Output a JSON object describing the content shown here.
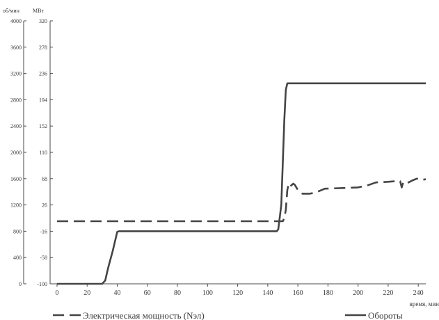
{
  "chart_data": {
    "type": "line",
    "xlabel": "время, мин",
    "left_axis": {
      "unit": "об/мин",
      "ylim": [
        0,
        4000
      ],
      "ticks": [
        "0",
        "400",
        "800",
        "1200",
        "1600",
        "2000",
        "2400",
        "2800",
        "3200",
        "3600",
        "4000"
      ]
    },
    "right_axis": {
      "unit": "МВт",
      "ylim": [
        -100,
        320
      ],
      "ticks": [
        "-100",
        "-58",
        "-16",
        "26",
        "68",
        "110",
        "152",
        "194",
        "236",
        "278",
        "320"
      ]
    },
    "x_ticks": [
      "0",
      "20",
      "40",
      "60",
      "80",
      "100",
      "120",
      "140",
      "160",
      "180",
      "200",
      "220",
      "240"
    ],
    "xlim": [
      0,
      245
    ],
    "grid": false,
    "legend_position": "bottom",
    "series": [
      {
        "name": "Электрическая мощность (Nэл)",
        "axis": "right",
        "style": "dashed",
        "points": [
          [
            0,
            0
          ],
          [
            148,
            0
          ],
          [
            150,
            0
          ],
          [
            151,
            5
          ],
          [
            152,
            18
          ],
          [
            153,
            50
          ],
          [
            154,
            60
          ],
          [
            155,
            56
          ],
          [
            156,
            58
          ],
          [
            157,
            60
          ],
          [
            158,
            58
          ],
          [
            160,
            50
          ],
          [
            163,
            44
          ],
          [
            168,
            44
          ],
          [
            172,
            46
          ],
          [
            178,
            52
          ],
          [
            190,
            53
          ],
          [
            200,
            54
          ],
          [
            206,
            57
          ],
          [
            212,
            62
          ],
          [
            220,
            63
          ],
          [
            225,
            64
          ],
          [
            228,
            64
          ],
          [
            229,
            54
          ],
          [
            230,
            62
          ],
          [
            232,
            60
          ],
          [
            236,
            65
          ],
          [
            239,
            68
          ],
          [
            242,
            66
          ],
          [
            245,
            67
          ]
        ]
      },
      {
        "name": "Обороты",
        "axis": "left",
        "style": "solid",
        "points": [
          [
            0,
            0
          ],
          [
            30,
            0
          ],
          [
            32,
            50
          ],
          [
            34,
            250
          ],
          [
            37,
            500
          ],
          [
            40,
            790
          ],
          [
            41,
            800
          ],
          [
            60,
            800
          ],
          [
            80,
            800
          ],
          [
            100,
            800
          ],
          [
            120,
            800
          ],
          [
            140,
            800
          ],
          [
            146,
            800
          ],
          [
            147,
            830
          ],
          [
            149,
            1200
          ],
          [
            151,
            2500
          ],
          [
            152,
            2950
          ],
          [
            153,
            3050
          ],
          [
            160,
            3050
          ],
          [
            200,
            3050
          ],
          [
            245,
            3050
          ]
        ]
      }
    ]
  }
}
